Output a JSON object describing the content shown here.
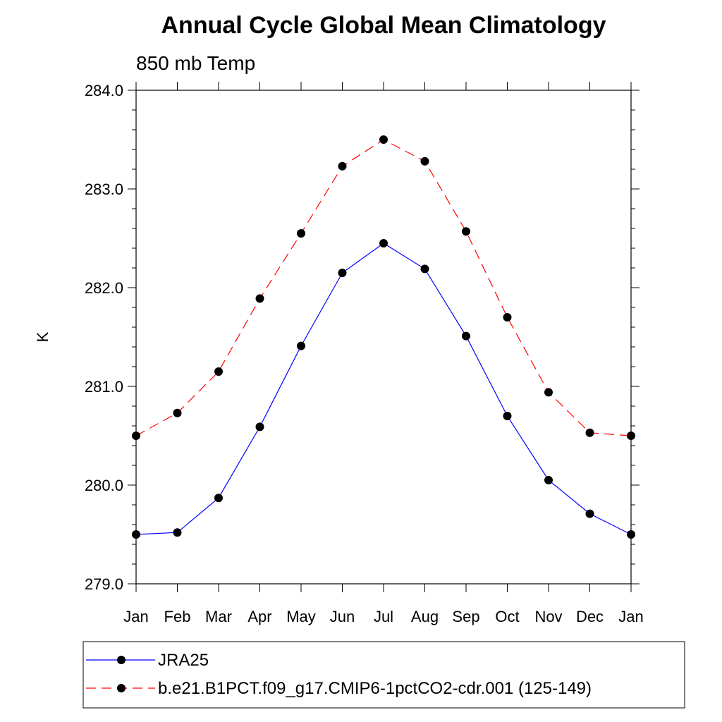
{
  "chart_data": {
    "type": "line",
    "title": "Annual Cycle Global Mean Climatology",
    "subtitle": "850 mb Temp",
    "xlabel": "",
    "ylabel": "K",
    "categories": [
      "Jan",
      "Feb",
      "Mar",
      "Apr",
      "May",
      "Jun",
      "Jul",
      "Aug",
      "Sep",
      "Oct",
      "Nov",
      "Dec",
      "Jan"
    ],
    "ylim": [
      279.0,
      284.0
    ],
    "yticks": [
      "279.0",
      "280.0",
      "281.0",
      "282.0",
      "283.0",
      "284.0"
    ],
    "series": [
      {
        "name": "JRA25",
        "color": "#0000ff",
        "dash": "solid",
        "values": [
          279.5,
          279.52,
          279.87,
          280.59,
          281.41,
          282.15,
          282.45,
          282.19,
          281.51,
          280.7,
          280.05,
          279.71,
          279.5
        ]
      },
      {
        "name": "b.e21.B1PCT.f09_g17.CMIP6-1pctCO2-cdr.001 (125-149)",
        "color": "#ff0000",
        "dash": "dashed",
        "values": [
          280.5,
          280.73,
          281.15,
          281.89,
          282.55,
          283.23,
          283.5,
          283.28,
          282.57,
          281.7,
          280.94,
          280.53,
          280.5
        ]
      }
    ],
    "grid": false,
    "legend_position": "bottom"
  }
}
